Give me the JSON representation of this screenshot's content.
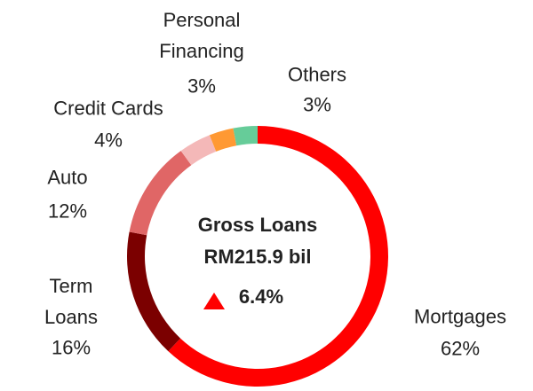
{
  "chart_data": {
    "type": "donut",
    "categories": [
      "Mortgages",
      "Term Loans",
      "Auto",
      "Credit Cards",
      "Personal Financing",
      "Others"
    ],
    "values": [
      62,
      16,
      12,
      4,
      3,
      3
    ],
    "value_labels": [
      "62%",
      "16%",
      "12%",
      "4%",
      "3%",
      "3%"
    ],
    "colors": [
      "#ff0000",
      "#7b0000",
      "#e06666",
      "#f4b8b8",
      "#ff9933",
      "#66cc99"
    ],
    "center_title": "Gross Loans",
    "center_value": "RM215.9 bil",
    "center_change": "6.4%"
  }
}
